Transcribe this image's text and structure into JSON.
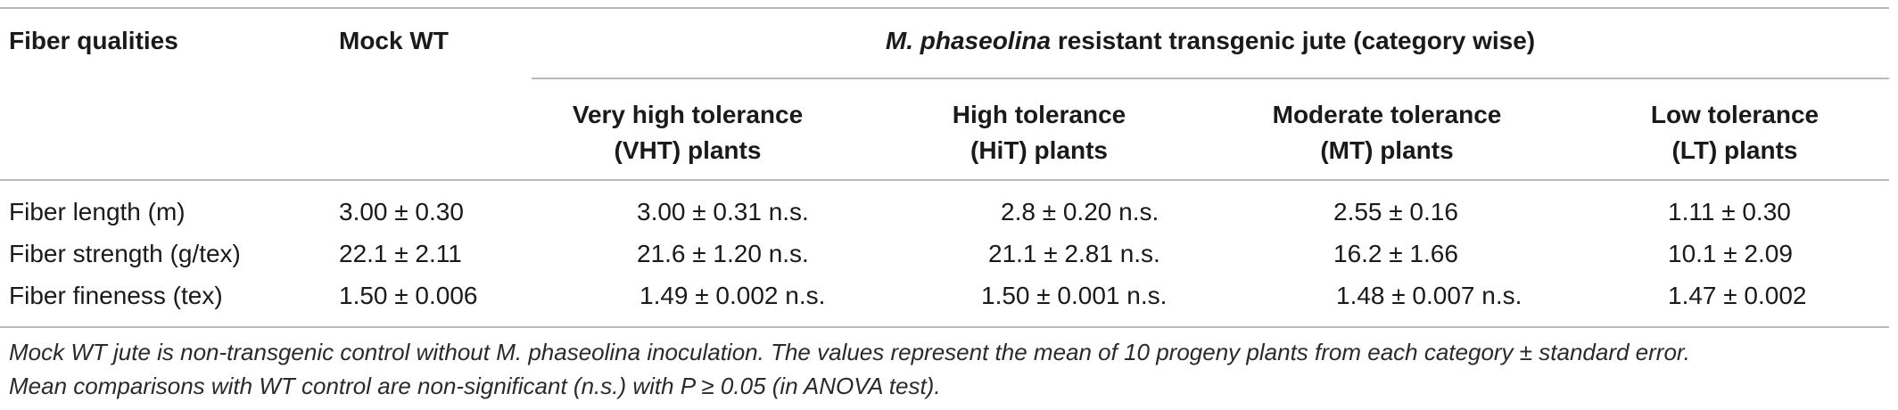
{
  "table": {
    "header": {
      "col_fiber": "Fiber qualities",
      "col_mock": "Mock WT",
      "group_title_species": "M. phaseolina",
      "group_title_rest": " resistant transgenic jute (category wise)",
      "sub": [
        {
          "line1": "Very high tolerance",
          "line2": "(VHT) plants"
        },
        {
          "line1": "High tolerance",
          "line2": "(HiT) plants"
        },
        {
          "line1": "Moderate tolerance",
          "line2": "(MT) plants"
        },
        {
          "line1": "Low tolerance",
          "line2": "(LT) plants"
        }
      ]
    },
    "rows": [
      {
        "label": "Fiber length (m)",
        "mock": "3.00 ± 0.30",
        "vht": "3.00 ± 0.31 n.s.",
        "hit": "2.8 ± 0.20 n.s.",
        "mt": "2.55 ± 0.16",
        "lt": "1.11 ± 0.30"
      },
      {
        "label": "Fiber strength (g/tex)",
        "mock": "22.1 ± 2.11",
        "vht": "21.6 ± 1.20 n.s.",
        "hit": "21.1 ± 2.81 n.s.",
        "mt": "16.2 ± 1.66",
        "lt": "10.1 ± 2.09"
      },
      {
        "label": "Fiber fineness (tex)",
        "mock": "1.50 ± 0.006",
        "vht": "1.49 ± 0.002 n.s.",
        "hit": "1.50 ± 0.001 n.s.",
        "mt": "1.48 ± 0.007 n.s.",
        "lt": "1.47 ± 0.002"
      }
    ]
  },
  "footnote": {
    "line1": "Mock WT jute is non-transgenic control without M. phaseolina inoculation. The values represent the mean of 10 progeny plants from each category ± standard error.",
    "line2": "Mean comparisons with WT control are non-significant (n.s.) with P ≥ 0.05 (in ANOVA test)."
  }
}
